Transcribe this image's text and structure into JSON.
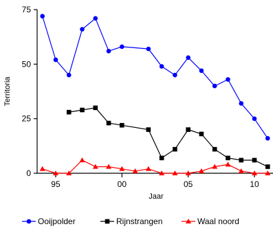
{
  "chart_data": {
    "type": "line",
    "title": "",
    "xlabel": "Jaar",
    "ylabel": "Territoria",
    "xlim": [
      1993.6,
      2011.4
    ],
    "ylim": [
      0,
      75
    ],
    "x_ticks": [
      {
        "value": 1995,
        "label": "95"
      },
      {
        "value": 2000,
        "label": "00"
      },
      {
        "value": 2005,
        "label": "05"
      },
      {
        "value": 2010,
        "label": "10"
      }
    ],
    "y_ticks": [
      {
        "value": 0,
        "label": "0"
      },
      {
        "value": 25,
        "label": "25"
      },
      {
        "value": 50,
        "label": "50"
      },
      {
        "value": 75,
        "label": "75"
      }
    ],
    "grid": false,
    "legend_position": "bottom",
    "series": [
      {
        "name": "Ooijpolder",
        "color": "#0000ff",
        "marker": "circle",
        "points": [
          [
            1994,
            72
          ],
          [
            1995,
            52
          ],
          [
            1996,
            45
          ],
          [
            1997,
            66
          ],
          [
            1998,
            71
          ],
          [
            1999,
            56
          ],
          [
            2000,
            58
          ],
          [
            2002,
            57
          ],
          [
            2003,
            49
          ],
          [
            2004,
            45
          ],
          [
            2005,
            53
          ],
          [
            2006,
            47
          ],
          [
            2007,
            40
          ],
          [
            2008,
            43
          ],
          [
            2009,
            32
          ],
          [
            2010,
            25
          ],
          [
            2011,
            16
          ]
        ]
      },
      {
        "name": "Rijnstrangen",
        "color": "#000000",
        "marker": "square",
        "points": [
          [
            1996,
            28
          ],
          [
            1997,
            29
          ],
          [
            1998,
            30
          ],
          [
            1999,
            23
          ],
          [
            2000,
            22
          ],
          [
            2002,
            20
          ],
          [
            2003,
            7
          ],
          [
            2004,
            11
          ],
          [
            2005,
            20
          ],
          [
            2006,
            18
          ],
          [
            2007,
            11
          ],
          [
            2008,
            7
          ],
          [
            2009,
            6
          ],
          [
            2010,
            6
          ],
          [
            2011,
            3
          ]
        ]
      },
      {
        "name": "Waal noord",
        "color": "#ff0000",
        "marker": "triangle",
        "points": [
          [
            1994,
            2
          ],
          [
            1995,
            0
          ],
          [
            1996,
            0
          ],
          [
            1997,
            6
          ],
          [
            1998,
            3
          ],
          [
            1999,
            3
          ],
          [
            2000,
            2
          ],
          [
            2001,
            1
          ],
          [
            2002,
            2
          ],
          [
            2003,
            0
          ],
          [
            2004,
            0
          ],
          [
            2005,
            0
          ],
          [
            2006,
            1
          ],
          [
            2007,
            3
          ],
          [
            2008,
            4
          ],
          [
            2009,
            1
          ],
          [
            2010,
            0
          ],
          [
            2011,
            0
          ]
        ]
      }
    ]
  }
}
